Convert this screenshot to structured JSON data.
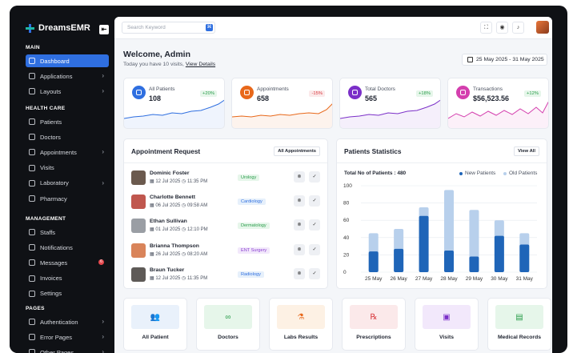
{
  "sidebar": {
    "brand": "DreamsEMR",
    "collapse_icon": "collapse-icon",
    "sections": [
      {
        "title": "MAIN",
        "items": [
          {
            "label": "Dashboard",
            "icon": "dashboard-icon",
            "active": true,
            "chevron": false
          },
          {
            "label": "Applications",
            "icon": "apps-icon",
            "chevron": true
          },
          {
            "label": "Layouts",
            "icon": "layout-icon",
            "chevron": true
          }
        ]
      },
      {
        "title": "HEALTH CARE",
        "items": [
          {
            "label": "Patients",
            "icon": "users-icon"
          },
          {
            "label": "Doctors",
            "icon": "stethoscope-icon"
          },
          {
            "label": "Appointments",
            "icon": "calendar-icon",
            "chevron": true
          },
          {
            "label": "Visits",
            "icon": "visit-icon"
          },
          {
            "label": "Laboratory",
            "icon": "lab-icon",
            "chevron": true
          },
          {
            "label": "Pharmacy",
            "icon": "pill-icon"
          }
        ]
      },
      {
        "title": "MANAGEMENT",
        "items": [
          {
            "label": "Staffs",
            "icon": "staff-icon"
          },
          {
            "label": "Notifications",
            "icon": "bell-icon"
          },
          {
            "label": "Messages",
            "icon": "message-icon",
            "badge": "6"
          },
          {
            "label": "Invoices",
            "icon": "invoice-icon"
          },
          {
            "label": "Settings",
            "icon": "gear-icon"
          }
        ]
      },
      {
        "title": "PAGES",
        "items": [
          {
            "label": "Authentication",
            "icon": "lock-icon",
            "chevron": true
          },
          {
            "label": "Error Pages",
            "icon": "error-icon",
            "chevron": true
          },
          {
            "label": "Other Pages",
            "icon": "pages-icon",
            "chevron": true
          }
        ]
      }
    ]
  },
  "topbar": {
    "search_placeholder": "Search Keyword",
    "search_shortcut": "⌘"
  },
  "header": {
    "title": "Welcome, Admin",
    "subtitle": "Today you have 10 visits,",
    "link": "View Details",
    "date_range": "25 May 2025 - 31 May 2025"
  },
  "stats": [
    {
      "label": "All Patients",
      "value": "108",
      "change": "+20%",
      "color": "#2f6fe0",
      "trend": "up"
    },
    {
      "label": "Appointments",
      "value": "658",
      "change": "-15%",
      "color": "#e8681a",
      "trend": "down"
    },
    {
      "label": "Total Doctors",
      "value": "565",
      "change": "+18%",
      "color": "#7b2fc8",
      "trend": "up"
    },
    {
      "label": "Transactions",
      "value": "$56,523.56",
      "change": "+12%",
      "color": "#d43fae",
      "trend": "up"
    }
  ],
  "appointments": {
    "title": "Appointment Request",
    "button": "All Appointments",
    "rows": [
      {
        "name": "Dominic Foster",
        "date": "12 Jul 2025",
        "time": "11:35 PM",
        "dept": "Urology",
        "dept_bg": "#e6f6ea",
        "dept_fg": "#2a9d4b",
        "avatar": "#6b5a4e"
      },
      {
        "name": "Charlotte Bennett",
        "date": "06 Jul 2025",
        "time": "09:58 AM",
        "dept": "Cardiology",
        "dept_bg": "#e6f0fb",
        "dept_fg": "#2f6fe0",
        "avatar": "#c0574e"
      },
      {
        "name": "Ethan Sullivan",
        "date": "01 Jul 2025",
        "time": "12:10 PM",
        "dept": "Dermatology",
        "dept_bg": "#e6f6ea",
        "dept_fg": "#2a9d4b",
        "avatar": "#9a9ea4"
      },
      {
        "name": "Brianna Thompson",
        "date": "26 Jul 2025",
        "time": "08:20 AM",
        "dept": "ENT Surgery",
        "dept_bg": "#f2e8fb",
        "dept_fg": "#8a3fd1",
        "avatar": "#d9845a"
      },
      {
        "name": "Braun Tucker",
        "date": "12 Jul 2025",
        "time": "11:35 PM",
        "dept": "Radiology",
        "dept_bg": "#e6f0fb",
        "dept_fg": "#2f6fe0",
        "avatar": "#5e5a57"
      }
    ]
  },
  "patients_stats": {
    "title": "Patients Statistics",
    "button": "View All",
    "total_label": "Total No of Patients : 480",
    "legend_new": "New Patients",
    "legend_old": "Old Patients"
  },
  "chart_data": {
    "type": "bar",
    "categories": [
      "25 May",
      "26 May",
      "27 May",
      "28 May",
      "29 May",
      "30 May",
      "31 May"
    ],
    "series": [
      {
        "name": "New Patients",
        "values": [
          24,
          27,
          65,
          25,
          18,
          42,
          32
        ],
        "color": "#1f65b8"
      },
      {
        "name": "Old Patients",
        "values": [
          45,
          50,
          75,
          95,
          72,
          60,
          45
        ],
        "color": "#b8d0ec"
      }
    ],
    "yticks": [
      0,
      20,
      40,
      60,
      80,
      100
    ],
    "ylim": [
      0,
      100
    ],
    "grid": true,
    "legend": "top-right"
  },
  "shortcuts": [
    {
      "label": "All Patient",
      "icon": "users-icon",
      "glyph": "👥",
      "bg": "#e9f1fb",
      "fg": "#2f6fe0"
    },
    {
      "label": "Doctors",
      "icon": "stethoscope-icon",
      "glyph": "∞",
      "bg": "#e6f6ea",
      "fg": "#2a9d4b"
    },
    {
      "label": "Labs Results",
      "icon": "test-tube-icon",
      "glyph": "⚗",
      "bg": "#fdf1e4",
      "fg": "#e8681a"
    },
    {
      "label": "Prescriptions",
      "icon": "prescription-icon",
      "glyph": "℞",
      "bg": "#fbe9ea",
      "fg": "#d8383d"
    },
    {
      "label": "Visits",
      "icon": "visit-icon",
      "glyph": "▣",
      "bg": "#f2e8fb",
      "fg": "#7b2fc8"
    },
    {
      "label": "Medical Records",
      "icon": "file-icon",
      "glyph": "▤",
      "bg": "#e6f6ea",
      "fg": "#2a9d4b"
    }
  ]
}
